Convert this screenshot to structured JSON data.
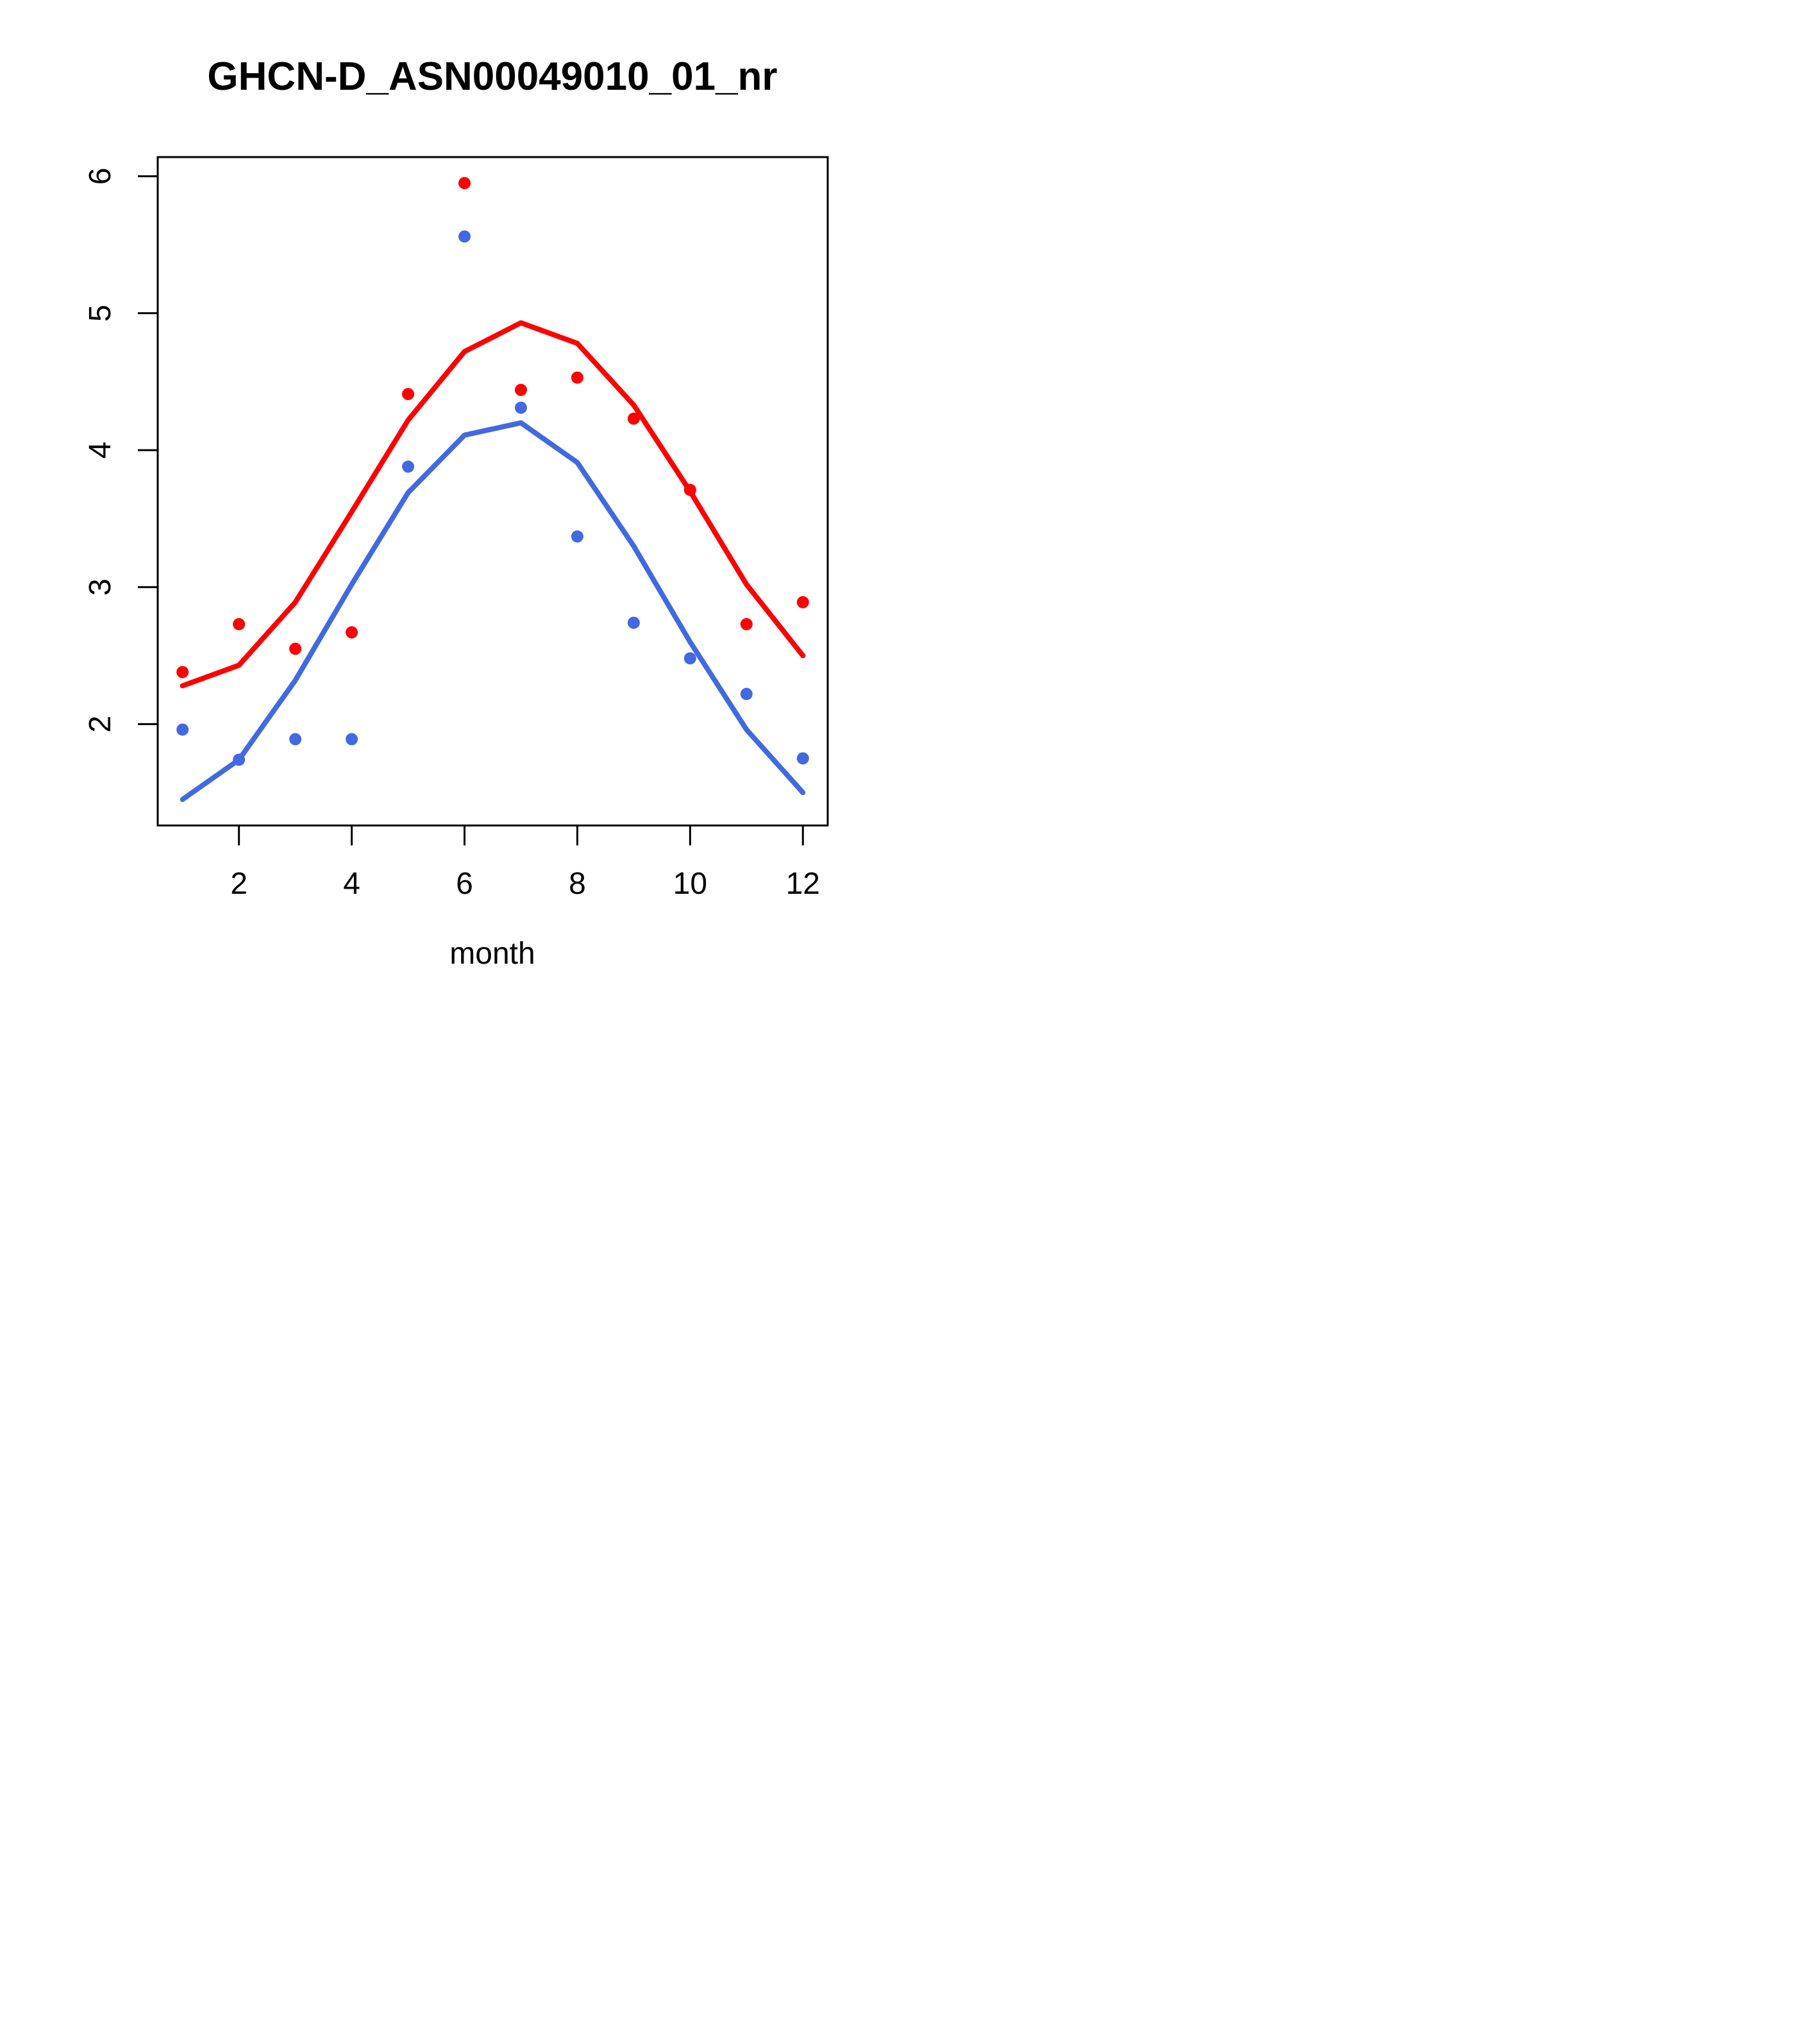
{
  "chart_data": {
    "type": "scatter",
    "title": "GHCN-D_ASN00049010_01_nr",
    "xlabel": "month",
    "ylabel": "",
    "x": [
      1,
      2,
      3,
      4,
      5,
      6,
      7,
      8,
      9,
      10,
      11,
      12
    ],
    "xticks": [
      2,
      4,
      6,
      8,
      10,
      12
    ],
    "yticks": [
      2,
      3,
      4,
      5,
      6
    ],
    "xlim": [
      0.56,
      12.44
    ],
    "ylim": [
      1.26,
      6.14
    ],
    "grid": false,
    "legend": "none",
    "background_color": "#ffffff",
    "box_color": "#000000",
    "series": [
      {
        "name": "red-line",
        "type": "line",
        "color": "#ff0000",
        "values": [
          2.28,
          2.43,
          2.89,
          3.55,
          4.22,
          4.72,
          4.93,
          4.78,
          4.33,
          3.7,
          3.02,
          2.5
        ]
      },
      {
        "name": "blue-line",
        "type": "line",
        "color": "#4169e1",
        "values": [
          1.45,
          1.74,
          2.32,
          3.02,
          3.69,
          4.11,
          4.2,
          3.91,
          3.3,
          2.6,
          1.96,
          1.5
        ]
      },
      {
        "name": "red-points",
        "type": "points",
        "color": "#ff0000",
        "values": [
          2.38,
          2.73,
          2.55,
          2.67,
          4.41,
          5.95,
          4.44,
          4.53,
          4.23,
          3.71,
          2.73,
          2.89
        ]
      },
      {
        "name": "blue-points",
        "type": "points",
        "color": "#4169e1",
        "values": [
          1.96,
          1.74,
          1.89,
          1.89,
          3.88,
          5.56,
          4.31,
          3.37,
          2.74,
          2.48,
          2.22,
          1.75
        ]
      }
    ]
  }
}
